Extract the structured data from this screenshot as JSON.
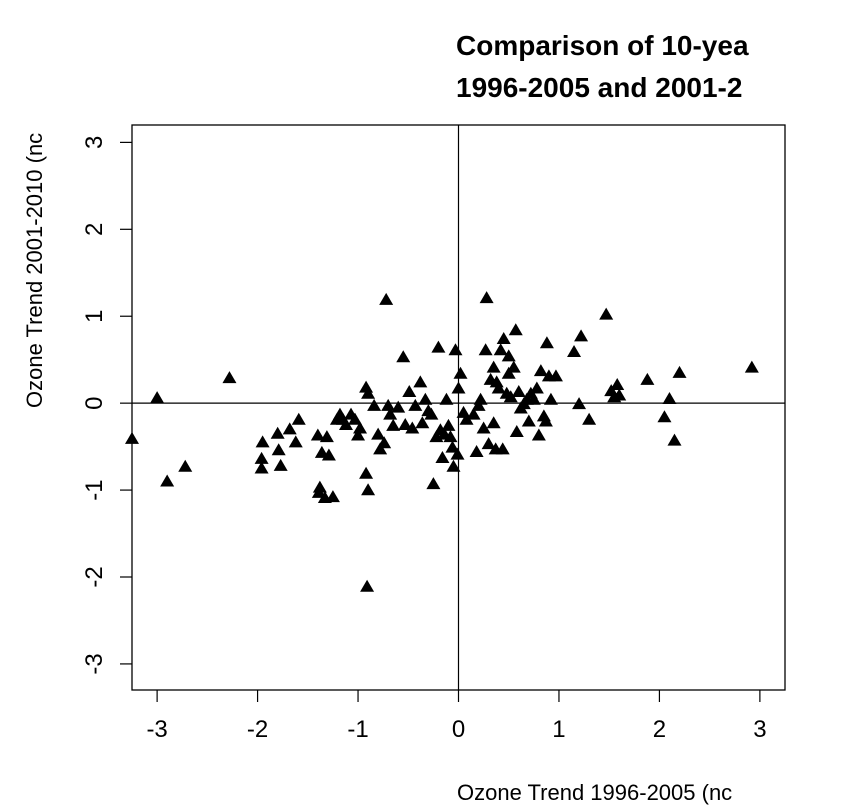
{
  "chart_data": {
    "type": "scatter",
    "title_lines": [
      "Comparison of 10-yea",
      "1996-2005 and 2001-2"
    ],
    "xlabel": "Ozone Trend 1996-2005 (nc",
    "ylabel": "Ozone Trend 2001-2010 (nc",
    "xlim": [
      -3.25,
      3.25
    ],
    "ylim": [
      -3.3,
      3.2
    ],
    "x_ticks": [
      -3,
      -2,
      -1,
      0,
      1,
      2,
      3
    ],
    "y_ticks": [
      -3,
      -2,
      -1,
      0,
      1,
      2,
      3
    ],
    "x_tick_labels": [
      "-3",
      "-2",
      "-1",
      "0",
      "1",
      "2",
      "3"
    ],
    "y_tick_labels": [
      "-3",
      "-2",
      "-1",
      "0",
      "1",
      "2",
      "3"
    ],
    "reference_lines": {
      "x": 0,
      "y": 0
    },
    "grid": false,
    "marker": "filled-triangle",
    "marker_color": "#000000",
    "points": [
      [
        -3.25,
        -0.4
      ],
      [
        -3.0,
        0.07
      ],
      [
        -2.9,
        -0.89
      ],
      [
        -2.72,
        -0.72
      ],
      [
        -2.28,
        0.3
      ],
      [
        -1.95,
        -0.44
      ],
      [
        -1.96,
        -0.63
      ],
      [
        -1.96,
        -0.74
      ],
      [
        -1.8,
        -0.34
      ],
      [
        -1.79,
        -0.53
      ],
      [
        -1.77,
        -0.71
      ],
      [
        -1.68,
        -0.29
      ],
      [
        -1.62,
        -0.44
      ],
      [
        -1.59,
        -0.18
      ],
      [
        -1.4,
        -0.36
      ],
      [
        -1.39,
        -1.02
      ],
      [
        -1.38,
        -0.96
      ],
      [
        -1.36,
        -0.56
      ],
      [
        -1.33,
        -1.08
      ],
      [
        -1.31,
        -0.38
      ],
      [
        -1.29,
        -0.59
      ],
      [
        -1.25,
        -1.07
      ],
      [
        -1.21,
        -0.18
      ],
      [
        -1.18,
        -0.12
      ],
      [
        -1.15,
        -0.18
      ],
      [
        -1.12,
        -0.24
      ],
      [
        -1.07,
        -0.12
      ],
      [
        -1.03,
        -0.18
      ],
      [
        -1.0,
        -0.36
      ],
      [
        -0.98,
        -0.28
      ],
      [
        -0.92,
        0.19
      ],
      [
        -0.9,
        0.12
      ],
      [
        -0.92,
        -0.8
      ],
      [
        -0.9,
        -0.99
      ],
      [
        -0.91,
        -2.1
      ],
      [
        -0.84,
        -0.02
      ],
      [
        -0.8,
        -0.35
      ],
      [
        -0.78,
        -0.52
      ],
      [
        -0.74,
        -0.45
      ],
      [
        -0.72,
        1.2
      ],
      [
        -0.7,
        -0.02
      ],
      [
        -0.68,
        -0.12
      ],
      [
        -0.65,
        -0.25
      ],
      [
        -0.6,
        -0.04
      ],
      [
        -0.55,
        0.54
      ],
      [
        -0.53,
        -0.24
      ],
      [
        -0.49,
        0.14
      ],
      [
        -0.46,
        -0.28
      ],
      [
        -0.43,
        -0.02
      ],
      [
        -0.38,
        0.25
      ],
      [
        -0.36,
        -0.22
      ],
      [
        -0.33,
        0.05
      ],
      [
        -0.3,
        -0.08
      ],
      [
        -0.27,
        -0.12
      ],
      [
        -0.25,
        -0.92
      ],
      [
        -0.22,
        -0.38
      ],
      [
        -0.2,
        0.65
      ],
      [
        -0.18,
        -0.3
      ],
      [
        -0.16,
        -0.62
      ],
      [
        -0.14,
        -0.35
      ],
      [
        -0.12,
        0.05
      ],
      [
        -0.1,
        -0.25
      ],
      [
        -0.08,
        -0.38
      ],
      [
        -0.06,
        -0.5
      ],
      [
        -0.05,
        -0.72
      ],
      [
        -0.03,
        0.62
      ],
      [
        -0.01,
        -0.58
      ],
      [
        0.0,
        0.18
      ],
      [
        0.02,
        0.35
      ],
      [
        0.05,
        -0.1
      ],
      [
        0.08,
        -0.18
      ],
      [
        0.15,
        -0.12
      ],
      [
        0.18,
        -0.55
      ],
      [
        0.2,
        -0.02
      ],
      [
        0.22,
        0.05
      ],
      [
        0.25,
        -0.28
      ],
      [
        0.27,
        0.62
      ],
      [
        0.28,
        1.22
      ],
      [
        0.3,
        -0.46
      ],
      [
        0.32,
        0.28
      ],
      [
        0.35,
        -0.22
      ],
      [
        0.35,
        0.42
      ],
      [
        0.37,
        -0.52
      ],
      [
        0.38,
        0.25
      ],
      [
        0.4,
        0.18
      ],
      [
        0.42,
        0.62
      ],
      [
        0.44,
        -0.52
      ],
      [
        0.45,
        0.75
      ],
      [
        0.48,
        0.12
      ],
      [
        0.5,
        0.55
      ],
      [
        0.5,
        0.35
      ],
      [
        0.52,
        0.08
      ],
      [
        0.55,
        0.42
      ],
      [
        0.57,
        0.85
      ],
      [
        0.58,
        -0.32
      ],
      [
        0.6,
        0.14
      ],
      [
        0.62,
        -0.05
      ],
      [
        0.65,
        0.0
      ],
      [
        0.68,
        0.05
      ],
      [
        0.7,
        -0.2
      ],
      [
        0.72,
        0.12
      ],
      [
        0.75,
        0.05
      ],
      [
        0.78,
        0.18
      ],
      [
        0.8,
        -0.36
      ],
      [
        0.82,
        0.38
      ],
      [
        0.85,
        -0.14
      ],
      [
        0.87,
        -0.2
      ],
      [
        0.88,
        0.7
      ],
      [
        0.9,
        0.32
      ],
      [
        0.92,
        0.05
      ],
      [
        0.97,
        0.32
      ],
      [
        1.15,
        0.6
      ],
      [
        1.2,
        0.0
      ],
      [
        1.22,
        0.78
      ],
      [
        1.3,
        -0.18
      ],
      [
        1.47,
        1.03
      ],
      [
        1.52,
        0.15
      ],
      [
        1.55,
        0.08
      ],
      [
        1.58,
        0.22
      ],
      [
        1.6,
        0.1
      ],
      [
        1.88,
        0.28
      ],
      [
        2.05,
        -0.15
      ],
      [
        2.1,
        0.06
      ],
      [
        2.15,
        -0.42
      ],
      [
        2.2,
        0.36
      ],
      [
        2.92,
        0.42
      ]
    ]
  }
}
